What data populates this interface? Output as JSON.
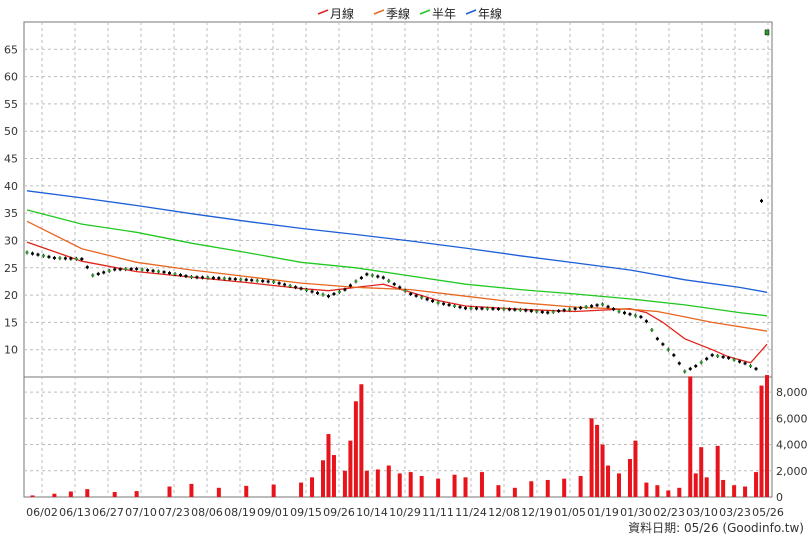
{
  "chart_data": {
    "type": "line",
    "legend": {
      "placement": "top-center",
      "items": [
        {
          "label": "月線",
          "color": "#e0241b"
        },
        {
          "label": "季線",
          "color": "#e8661e"
        },
        {
          "label": "半年",
          "color": "#22c822"
        },
        {
          "label": "年線",
          "color": "#1c5fd8"
        }
      ]
    },
    "price_axis": {
      "ylim": [
        5,
        70
      ],
      "ticks": [
        10,
        15,
        20,
        25,
        30,
        35,
        40,
        45,
        50,
        55,
        60,
        65
      ],
      "grid": true
    },
    "volume_axis": {
      "ylim": [
        0,
        9000
      ],
      "ticks": [
        0,
        2000,
        4000,
        6000,
        8000
      ],
      "tick_labels": [
        "0",
        "2,000",
        "4,000",
        "6,000",
        "8,000"
      ]
    },
    "x_ticks": [
      "06/02",
      "06/13",
      "06/27",
      "07/10",
      "07/23",
      "08/06",
      "08/19",
      "09/01",
      "09/15",
      "09/26",
      "10/14",
      "10/29",
      "11/11",
      "11/24",
      "12/08",
      "12/19",
      "01/05",
      "01/19",
      "01/30",
      "02/23",
      "03/10",
      "03/23",
      "05/26"
    ],
    "footer": "資料日期: 05/26 (Goodinfo.tw)",
    "price_points": [
      [
        0,
        27.8
      ],
      [
        5,
        26.8
      ],
      [
        10,
        26.6
      ],
      [
        12,
        23.6
      ],
      [
        16,
        24.7
      ],
      [
        20,
        24.8
      ],
      [
        25,
        24.2
      ],
      [
        30,
        23.3
      ],
      [
        35,
        23.1
      ],
      [
        40,
        22.8
      ],
      [
        45,
        22.4
      ],
      [
        50,
        21.2
      ],
      [
        55,
        19.8
      ],
      [
        58,
        21.0
      ],
      [
        60,
        22.5
      ],
      [
        62,
        23.8
      ],
      [
        65,
        23.2
      ],
      [
        67,
        22.0
      ],
      [
        70,
        20.2
      ],
      [
        75,
        18.6
      ],
      [
        80,
        17.6
      ],
      [
        85,
        17.5
      ],
      [
        90,
        17.3
      ],
      [
        95,
        16.8
      ],
      [
        100,
        17.5
      ],
      [
        105,
        18.3
      ],
      [
        108,
        17.0
      ],
      [
        112,
        16.0
      ],
      [
        113,
        15.2
      ],
      [
        115,
        12.0
      ],
      [
        118,
        9.0
      ],
      [
        120,
        6.0
      ],
      [
        122,
        7.0
      ],
      [
        125,
        9.0
      ],
      [
        128,
        8.5
      ],
      [
        131,
        7.5
      ],
      [
        133,
        6.5
      ],
      [
        135,
        68.0
      ]
    ],
    "series": [
      {
        "name": "月線",
        "points": [
          [
            0,
            29.7
          ],
          [
            10,
            26.2
          ],
          [
            20,
            24.3
          ],
          [
            30,
            23.3
          ],
          [
            40,
            22.3
          ],
          [
            50,
            21.2
          ],
          [
            55,
            20.8
          ],
          [
            60,
            21.4
          ],
          [
            65,
            22.0
          ],
          [
            70,
            20.5
          ],
          [
            75,
            19.0
          ],
          [
            80,
            18.0
          ],
          [
            90,
            17.4
          ],
          [
            100,
            17.0
          ],
          [
            110,
            17.5
          ],
          [
            113,
            16.8
          ],
          [
            116,
            15.0
          ],
          [
            120,
            12.0
          ],
          [
            125,
            10.0
          ],
          [
            128,
            8.7
          ],
          [
            132,
            7.6
          ],
          [
            135,
            11.0
          ]
        ]
      },
      {
        "name": "季線",
        "points": [
          [
            0,
            33.5
          ],
          [
            10,
            28.5
          ],
          [
            20,
            26.0
          ],
          [
            30,
            24.6
          ],
          [
            40,
            23.4
          ],
          [
            50,
            22.2
          ],
          [
            60,
            21.4
          ],
          [
            70,
            21.0
          ],
          [
            80,
            19.8
          ],
          [
            90,
            18.6
          ],
          [
            100,
            17.8
          ],
          [
            110,
            17.4
          ],
          [
            115,
            17.0
          ],
          [
            120,
            16.0
          ],
          [
            125,
            15.0
          ],
          [
            135,
            13.4
          ]
        ]
      },
      {
        "name": "半年",
        "points": [
          [
            0,
            35.6
          ],
          [
            10,
            33.0
          ],
          [
            20,
            31.5
          ],
          [
            30,
            29.5
          ],
          [
            40,
            27.8
          ],
          [
            50,
            26.0
          ],
          [
            60,
            25.0
          ],
          [
            70,
            23.5
          ],
          [
            80,
            22.0
          ],
          [
            90,
            21.0
          ],
          [
            100,
            20.2
          ],
          [
            110,
            19.3
          ],
          [
            120,
            18.2
          ],
          [
            130,
            16.8
          ],
          [
            135,
            16.2
          ]
        ]
      },
      {
        "name": "年線",
        "points": [
          [
            0,
            39.1
          ],
          [
            10,
            37.8
          ],
          [
            20,
            36.4
          ],
          [
            30,
            34.9
          ],
          [
            40,
            33.5
          ],
          [
            50,
            32.2
          ],
          [
            60,
            31.1
          ],
          [
            70,
            29.9
          ],
          [
            80,
            28.6
          ],
          [
            90,
            27.2
          ],
          [
            100,
            25.9
          ],
          [
            110,
            24.6
          ],
          [
            120,
            22.8
          ],
          [
            130,
            21.4
          ],
          [
            135,
            20.5
          ]
        ]
      }
    ],
    "volume_bars": [
      {
        "i": 1,
        "v": 120
      },
      {
        "i": 5,
        "v": 250
      },
      {
        "i": 8,
        "v": 420
      },
      {
        "i": 11,
        "v": 600
      },
      {
        "i": 16,
        "v": 380
      },
      {
        "i": 20,
        "v": 450
      },
      {
        "i": 26,
        "v": 800
      },
      {
        "i": 30,
        "v": 1000
      },
      {
        "i": 35,
        "v": 700
      },
      {
        "i": 40,
        "v": 850
      },
      {
        "i": 45,
        "v": 950
      },
      {
        "i": 50,
        "v": 1100
      },
      {
        "i": 52,
        "v": 1500
      },
      {
        "i": 54,
        "v": 2800
      },
      {
        "i": 55,
        "v": 4800
      },
      {
        "i": 56,
        "v": 3200
      },
      {
        "i": 58,
        "v": 2000
      },
      {
        "i": 59,
        "v": 4300
      },
      {
        "i": 60,
        "v": 7300
      },
      {
        "i": 61,
        "v": 8600
      },
      {
        "i": 62,
        "v": 2000
      },
      {
        "i": 64,
        "v": 2100
      },
      {
        "i": 66,
        "v": 2400
      },
      {
        "i": 68,
        "v": 1800
      },
      {
        "i": 70,
        "v": 1900
      },
      {
        "i": 72,
        "v": 1600
      },
      {
        "i": 75,
        "v": 1400
      },
      {
        "i": 78,
        "v": 1700
      },
      {
        "i": 80,
        "v": 1500
      },
      {
        "i": 83,
        "v": 1900
      },
      {
        "i": 86,
        "v": 900
      },
      {
        "i": 89,
        "v": 700
      },
      {
        "i": 92,
        "v": 1200
      },
      {
        "i": 95,
        "v": 1300
      },
      {
        "i": 98,
        "v": 1400
      },
      {
        "i": 101,
        "v": 1600
      },
      {
        "i": 103,
        "v": 6000
      },
      {
        "i": 104,
        "v": 5500
      },
      {
        "i": 105,
        "v": 4000
      },
      {
        "i": 106,
        "v": 2400
      },
      {
        "i": 108,
        "v": 1800
      },
      {
        "i": 110,
        "v": 2900
      },
      {
        "i": 111,
        "v": 4300
      },
      {
        "i": 113,
        "v": 1100
      },
      {
        "i": 115,
        "v": 900
      },
      {
        "i": 117,
        "v": 500
      },
      {
        "i": 119,
        "v": 700
      },
      {
        "i": 121,
        "v": 9200
      },
      {
        "i": 122,
        "v": 1800
      },
      {
        "i": 123,
        "v": 3800
      },
      {
        "i": 124,
        "v": 1500
      },
      {
        "i": 126,
        "v": 3900
      },
      {
        "i": 127,
        "v": 1300
      },
      {
        "i": 129,
        "v": 900
      },
      {
        "i": 131,
        "v": 800
      },
      {
        "i": 133,
        "v": 1900
      },
      {
        "i": 134,
        "v": 8500
      },
      {
        "i": 135,
        "v": 9300
      }
    ]
  }
}
